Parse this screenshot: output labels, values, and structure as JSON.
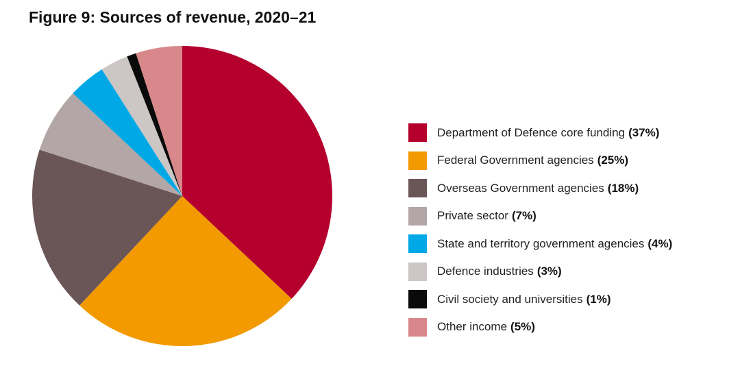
{
  "title": "Figure 9: Sources of revenue, 2020–21",
  "chart_data": {
    "type": "pie",
    "title": "Figure 9: Sources of revenue, 2020–21",
    "legend_position": "right",
    "start": "top, clockwise",
    "slices": [
      {
        "label": "Department of Defence core funding",
        "pct_label": "(37%)",
        "value": 37,
        "color": "#B5002E"
      },
      {
        "label": "Federal Government agencies",
        "pct_label": "(25%)",
        "value": 25,
        "color": "#F29A00"
      },
      {
        "label": "Overseas Government agencies",
        "pct_label": "(18%)",
        "value": 18,
        "color": "#6A5656"
      },
      {
        "label": "Private sector",
        "pct_label": "(7%)",
        "value": 7,
        "color": "#B2A6A6"
      },
      {
        "label": "State and territory government agencies",
        "pct_label": "(4%)",
        "value": 4,
        "color": "#00A8E6"
      },
      {
        "label": "Defence industries",
        "pct_label": "(3%)",
        "value": 3,
        "color": "#CCC6C4"
      },
      {
        "label": "Civil society and universities",
        "pct_label": "(1%)",
        "value": 1,
        "color": "#0A0A0A"
      },
      {
        "label": "Other income",
        "pct_label": "(5%)",
        "value": 5,
        "color": "#D8888A"
      }
    ]
  }
}
